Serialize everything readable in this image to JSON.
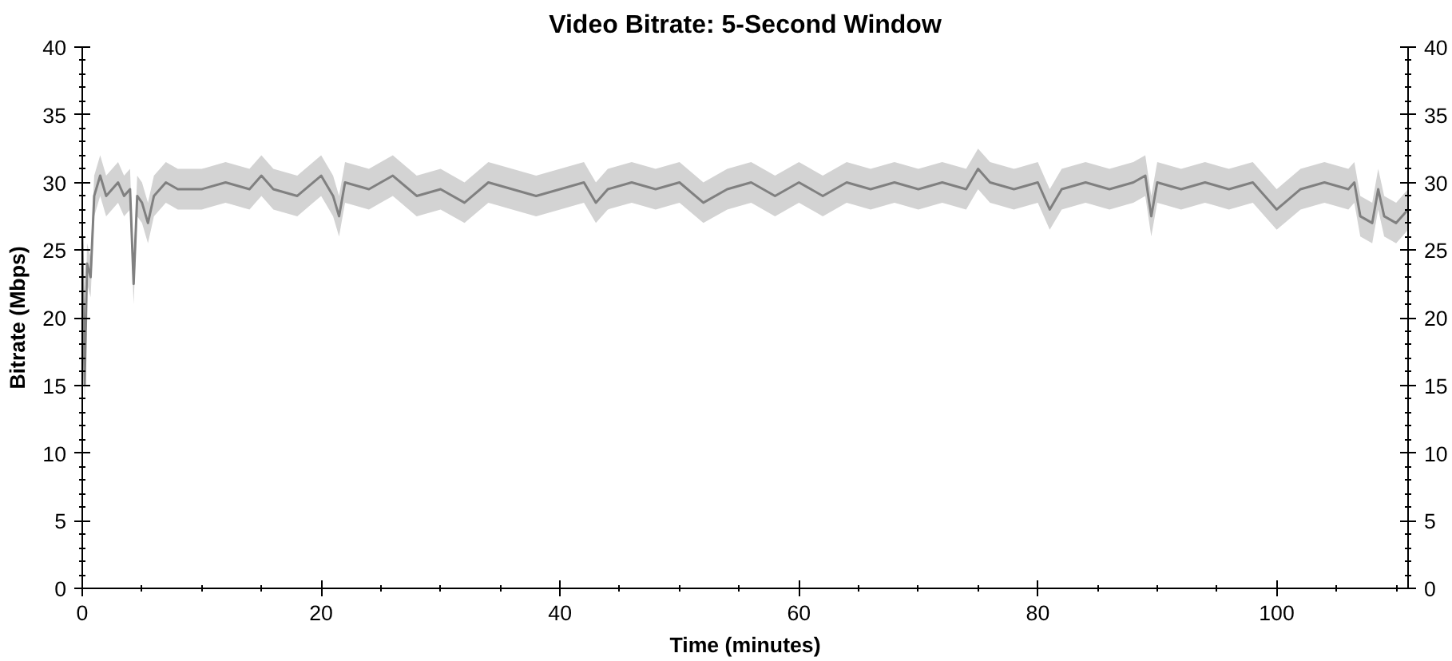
{
  "chart_data": {
    "type": "line",
    "title": "Video Bitrate: 5-Second Window",
    "xlabel": "Time (minutes)",
    "ylabel": "Bitrate (Mbps)",
    "xlim": [
      0,
      111
    ],
    "ylim": [
      0,
      40
    ],
    "y2lim": [
      0,
      40
    ],
    "xticks": [
      0,
      {
        "value": 5,
        "label": null
      },
      {
        "value": 10,
        "label": null
      },
      {
        "value": 15,
        "label": null
      },
      20,
      {
        "value": 25,
        "label": null
      },
      {
        "value": 30,
        "label": null
      },
      {
        "value": 35,
        "label": null
      },
      40,
      {
        "value": 45,
        "label": null
      },
      {
        "value": 50,
        "label": null
      },
      {
        "value": 55,
        "label": null
      },
      60,
      {
        "value": 65,
        "label": null
      },
      {
        "value": 70,
        "label": null
      },
      {
        "value": 75,
        "label": null
      },
      80,
      {
        "value": 85,
        "label": null
      },
      {
        "value": 90,
        "label": null
      },
      {
        "value": 95,
        "label": null
      },
      100,
      {
        "value": 105,
        "label": null
      },
      {
        "value": 110,
        "label": null
      }
    ],
    "yticks": [
      0,
      {
        "value": 1,
        "label": null
      },
      {
        "value": 2,
        "label": null
      },
      {
        "value": 3,
        "label": null
      },
      {
        "value": 4,
        "label": null
      },
      5,
      {
        "value": 6,
        "label": null
      },
      {
        "value": 7,
        "label": null
      },
      {
        "value": 8,
        "label": null
      },
      {
        "value": 9,
        "label": null
      },
      10,
      {
        "value": 11,
        "label": null
      },
      {
        "value": 12,
        "label": null
      },
      {
        "value": 13,
        "label": null
      },
      {
        "value": 14,
        "label": null
      },
      15,
      {
        "value": 16,
        "label": null
      },
      {
        "value": 17,
        "label": null
      },
      {
        "value": 18,
        "label": null
      },
      {
        "value": 19,
        "label": null
      },
      20,
      {
        "value": 21,
        "label": null
      },
      {
        "value": 22,
        "label": null
      },
      {
        "value": 23,
        "label": null
      },
      {
        "value": 24,
        "label": null
      },
      25,
      {
        "value": 26,
        "label": null
      },
      {
        "value": 27,
        "label": null
      },
      {
        "value": 28,
        "label": null
      },
      {
        "value": 29,
        "label": null
      },
      30,
      {
        "value": 31,
        "label": null
      },
      {
        "value": 32,
        "label": null
      },
      {
        "value": 33,
        "label": null
      },
      {
        "value": 34,
        "label": null
      },
      35,
      {
        "value": 36,
        "label": null
      },
      {
        "value": 37,
        "label": null
      },
      {
        "value": 38,
        "label": null
      },
      {
        "value": 39,
        "label": null
      },
      40
    ],
    "y2ticks": [
      0,
      5,
      10,
      15,
      20,
      25,
      30,
      35,
      40
    ],
    "grid": false,
    "x": [
      0,
      0.2,
      0.4,
      0.7,
      1,
      1.5,
      2,
      2.5,
      3,
      3.5,
      4,
      4.3,
      4.6,
      5,
      5.5,
      6,
      7,
      8,
      10,
      12,
      14,
      15,
      16,
      18,
      20,
      21,
      21.5,
      22,
      24,
      26,
      28,
      30,
      32,
      34,
      36,
      38,
      40,
      42,
      43,
      44,
      46,
      48,
      50,
      52,
      54,
      56,
      58,
      60,
      62,
      64,
      66,
      68,
      70,
      72,
      74,
      75,
      76,
      78,
      80,
      81,
      82,
      84,
      86,
      88,
      89,
      89.5,
      90,
      92,
      94,
      96,
      98,
      100,
      102,
      104,
      106,
      106.5,
      107,
      108,
      108.5,
      109,
      110,
      111
    ],
    "series": [
      {
        "color": "#808080",
        "values": [
          26,
          15,
          24,
          23,
          29,
          30.5,
          29,
          29.5,
          30,
          29,
          29.5,
          22.5,
          29,
          28.5,
          27,
          29,
          30,
          29.5,
          29.5,
          30,
          29.5,
          30.5,
          29.5,
          29,
          30.5,
          29,
          27.5,
          30,
          29.5,
          30.5,
          29,
          29.5,
          28.5,
          30,
          29.5,
          29,
          29.5,
          30,
          28.5,
          29.5,
          30,
          29.5,
          30,
          28.5,
          29.5,
          30,
          29,
          30,
          29,
          30,
          29.5,
          30,
          29.5,
          30,
          29.5,
          31,
          30,
          29.5,
          30,
          28,
          29.5,
          30,
          29.5,
          30,
          30.5,
          27.5,
          30,
          29.5,
          30,
          29.5,
          30,
          28,
          29.5,
          30,
          29.5,
          30,
          27.5,
          27,
          29.5,
          27.5,
          27,
          28
        ],
        "lower": [
          24.5,
          13.5,
          22.5,
          21.5,
          27.5,
          29,
          27.5,
          28,
          28.5,
          27.5,
          28,
          21,
          27.5,
          27,
          25.5,
          27.5,
          28.5,
          28,
          28,
          28.5,
          28,
          29,
          28,
          27.5,
          29,
          27.5,
          26,
          28.5,
          28,
          29,
          27.5,
          28,
          27,
          28.5,
          28,
          27.5,
          28,
          28.5,
          27,
          28,
          28.5,
          28,
          28.5,
          27,
          28,
          28.5,
          27.5,
          28.5,
          27.5,
          28.5,
          28,
          28.5,
          28,
          28.5,
          28,
          29.5,
          28.5,
          28,
          28.5,
          26.5,
          28,
          28.5,
          28,
          28.5,
          29,
          26,
          28.5,
          28,
          28.5,
          28,
          28.5,
          26.5,
          28,
          28.5,
          28,
          28.5,
          26,
          25.5,
          28,
          26,
          25.5,
          26.5
        ],
        "upper": [
          27.5,
          16.5,
          25.5,
          24.5,
          30.5,
          32,
          30.5,
          31,
          31.5,
          30.5,
          31,
          24,
          30.5,
          30,
          28.5,
          30.5,
          31.5,
          31,
          31,
          31.5,
          31,
          32,
          31,
          30.5,
          32,
          30.5,
          29,
          31.5,
          31,
          32,
          30.5,
          31,
          30,
          31.5,
          31,
          30.5,
          31,
          31.5,
          30,
          31,
          31.5,
          31,
          31.5,
          30,
          31,
          31.5,
          30.5,
          31.5,
          30.5,
          31.5,
          31,
          31.5,
          31,
          31.5,
          31,
          32.5,
          31.5,
          31,
          31.5,
          29.5,
          31,
          31.5,
          31,
          31.5,
          32,
          29,
          31.5,
          31,
          31.5,
          31,
          31.5,
          29.5,
          31,
          31.5,
          31,
          31.5,
          29,
          28.5,
          31,
          29,
          28.5,
          29.5
        ]
      }
    ]
  }
}
